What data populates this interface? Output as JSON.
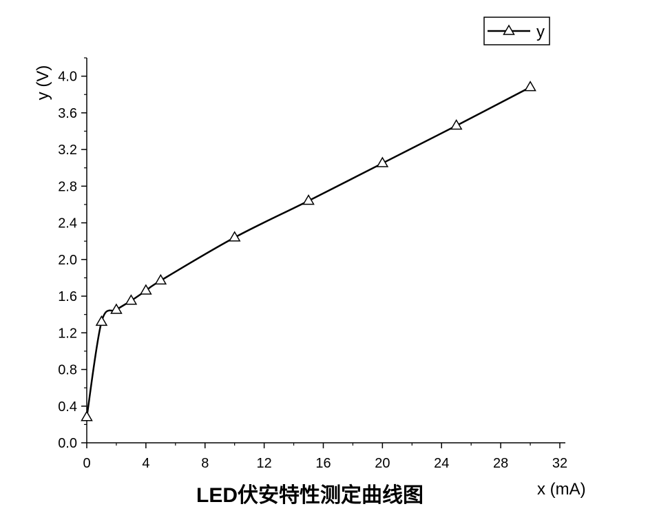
{
  "chart_data": {
    "type": "line",
    "title": "LED伏安特性测定曲线图",
    "xlabel": "x (mA)",
    "ylabel": "y (V)",
    "xlim": [
      0,
      32
    ],
    "ylim": [
      0,
      4.2
    ],
    "xticks": [
      0,
      4,
      8,
      12,
      16,
      20,
      24,
      28,
      32
    ],
    "yticks": [
      0.0,
      0.4,
      0.8,
      1.2,
      1.6,
      2.0,
      2.4,
      2.8,
      3.2,
      3.6,
      4.0
    ],
    "xtick_labels": [
      "0",
      "4",
      "8",
      "12",
      "16",
      "20",
      "24",
      "28",
      "32"
    ],
    "ytick_labels": [
      "0.0",
      "0.4",
      "0.8",
      "1.2",
      "1.6",
      "2.0",
      "2.4",
      "2.8",
      "3.2",
      "3.6",
      "4.0"
    ],
    "grid": false,
    "legend": {
      "placement": "top-right",
      "marker": "open-triangle"
    },
    "series": [
      {
        "name": "y",
        "color": "#000000",
        "marker": "open-triangle",
        "x": [
          0,
          1,
          2,
          3,
          4,
          5,
          10,
          15,
          20,
          25,
          30
        ],
        "y": [
          0.28,
          1.32,
          1.45,
          1.55,
          1.66,
          1.77,
          2.24,
          2.64,
          3.05,
          3.46,
          3.88
        ]
      }
    ]
  }
}
